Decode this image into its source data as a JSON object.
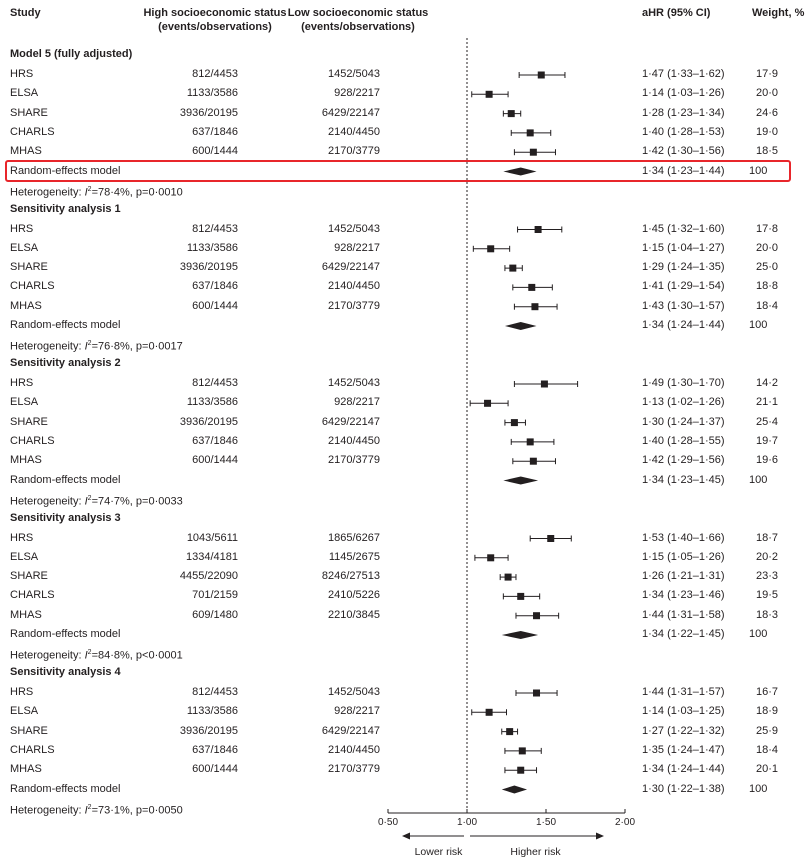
{
  "headers": {
    "study": "Study",
    "high": "High socioeconomic status\n(events/observations)",
    "low": "Low socioeconomic status\n(events/observations)",
    "ahr": "aHR (95% CI)",
    "weight": "Weight, %"
  },
  "chart_data": {
    "type": "forest",
    "x_axis": {
      "min": 0.5,
      "max": 2.0,
      "reference": 1.0,
      "ticks": [
        0.5,
        1.0,
        1.5,
        2.0
      ],
      "tick_labels": [
        "0·50",
        "1·00",
        "1·50",
        "2·00"
      ],
      "lower_label": "Lower risk",
      "higher_label": "Higher risk"
    },
    "groups": [
      {
        "title": "Model 5 (fully adjusted)",
        "studies": [
          {
            "name": "HRS",
            "high": "812/4453",
            "low": "1452/5043",
            "hr": 1.47,
            "lo": 1.33,
            "hi": 1.62,
            "ci_text": "1·47 (1·33–1·62)",
            "weight": "17·9"
          },
          {
            "name": "ELSA",
            "high": "1133/3586",
            "low": "928/2217",
            "hr": 1.14,
            "lo": 1.03,
            "hi": 1.26,
            "ci_text": "1·14 (1·03–1·26)",
            "weight": "20·0"
          },
          {
            "name": "SHARE",
            "high": "3936/20195",
            "low": "6429/22147",
            "hr": 1.28,
            "lo": 1.23,
            "hi": 1.34,
            "ci_text": "1·28 (1·23–1·34)",
            "weight": "24·6"
          },
          {
            "name": "CHARLS",
            "high": "637/1846",
            "low": "2140/4450",
            "hr": 1.4,
            "lo": 1.28,
            "hi": 1.53,
            "ci_text": "1·40 (1·28–1·53)",
            "weight": "19·0"
          },
          {
            "name": "MHAS",
            "high": "600/1444",
            "low": "2170/3779",
            "hr": 1.42,
            "lo": 1.3,
            "hi": 1.56,
            "ci_text": "1·42 (1·30–1·56)",
            "weight": "18·5"
          }
        ],
        "pooled": {
          "label": "Random-effects model",
          "hr": 1.34,
          "lo": 1.23,
          "hi": 1.44,
          "ci_text": "1·34 (1·23–1·44)",
          "weight": "100"
        },
        "heterogeneity": {
          "prefix": "Heterogeneity: ",
          "i2_label": "I",
          "i2_exp": "2",
          "value": "=78·4%, p=0·0010"
        }
      },
      {
        "title": "Sensitivity analysis 1",
        "studies": [
          {
            "name": "HRS",
            "high": "812/4453",
            "low": "1452/5043",
            "hr": 1.45,
            "lo": 1.32,
            "hi": 1.6,
            "ci_text": "1·45 (1·32–1·60)",
            "weight": "17·8"
          },
          {
            "name": "ELSA",
            "high": "1133/3586",
            "low": "928/2217",
            "hr": 1.15,
            "lo": 1.04,
            "hi": 1.27,
            "ci_text": "1·15 (1·04–1·27)",
            "weight": "20·0"
          },
          {
            "name": "SHARE",
            "high": "3936/20195",
            "low": "6429/22147",
            "hr": 1.29,
            "lo": 1.24,
            "hi": 1.35,
            "ci_text": "1·29 (1·24–1·35)",
            "weight": "25·0"
          },
          {
            "name": "CHARLS",
            "high": "637/1846",
            "low": "2140/4450",
            "hr": 1.41,
            "lo": 1.29,
            "hi": 1.54,
            "ci_text": "1·41 (1·29–1·54)",
            "weight": "18·8"
          },
          {
            "name": "MHAS",
            "high": "600/1444",
            "low": "2170/3779",
            "hr": 1.43,
            "lo": 1.3,
            "hi": 1.57,
            "ci_text": "1·43 (1·30–1·57)",
            "weight": "18·4"
          }
        ],
        "pooled": {
          "label": "Random-effects model",
          "hr": 1.34,
          "lo": 1.24,
          "hi": 1.44,
          "ci_text": "1·34 (1·24–1·44)",
          "weight": "100"
        },
        "heterogeneity": {
          "prefix": "Heterogeneity: ",
          "i2_label": "I",
          "i2_exp": "2",
          "value": "=76·8%, p=0·0017"
        }
      },
      {
        "title": "Sensitivity analysis 2",
        "studies": [
          {
            "name": "HRS",
            "high": "812/4453",
            "low": "1452/5043",
            "hr": 1.49,
            "lo": 1.3,
            "hi": 1.7,
            "ci_text": "1·49 (1·30–1·70)",
            "weight": "14·2"
          },
          {
            "name": "ELSA",
            "high": "1133/3586",
            "low": "928/2217",
            "hr": 1.13,
            "lo": 1.02,
            "hi": 1.26,
            "ci_text": "1·13 (1·02–1·26)",
            "weight": "21·1"
          },
          {
            "name": "SHARE",
            "high": "3936/20195",
            "low": "6429/22147",
            "hr": 1.3,
            "lo": 1.24,
            "hi": 1.37,
            "ci_text": "1·30 (1·24–1·37)",
            "weight": "25·4"
          },
          {
            "name": "CHARLS",
            "high": "637/1846",
            "low": "2140/4450",
            "hr": 1.4,
            "lo": 1.28,
            "hi": 1.55,
            "ci_text": "1·40 (1·28–1·55)",
            "weight": "19·7"
          },
          {
            "name": "MHAS",
            "high": "600/1444",
            "low": "2170/3779",
            "hr": 1.42,
            "lo": 1.29,
            "hi": 1.56,
            "ci_text": "1·42 (1·29–1·56)",
            "weight": "19·6"
          }
        ],
        "pooled": {
          "label": "Random-effects model",
          "hr": 1.34,
          "lo": 1.23,
          "hi": 1.45,
          "ci_text": "1·34 (1·23–1·45)",
          "weight": "100"
        },
        "heterogeneity": {
          "prefix": "Heterogeneity: ",
          "i2_label": "I",
          "i2_exp": "2",
          "value": "=74·7%, p=0·0033"
        }
      },
      {
        "title": "Sensitivity analysis 3",
        "studies": [
          {
            "name": "HRS",
            "high": "1043/5611",
            "low": "1865/6267",
            "hr": 1.53,
            "lo": 1.4,
            "hi": 1.66,
            "ci_text": "1·53 (1·40–1·66)",
            "weight": "18·7"
          },
          {
            "name": "ELSA",
            "high": "1334/4181",
            "low": "1145/2675",
            "hr": 1.15,
            "lo": 1.05,
            "hi": 1.26,
            "ci_text": "1·15 (1·05–1·26)",
            "weight": "20·2"
          },
          {
            "name": "SHARE",
            "high": "4455/22090",
            "low": "8246/27513",
            "hr": 1.26,
            "lo": 1.21,
            "hi": 1.31,
            "ci_text": "1·26 (1·21–1·31)",
            "weight": "23·3"
          },
          {
            "name": "CHARLS",
            "high": "701/2159",
            "low": "2410/5226",
            "hr": 1.34,
            "lo": 1.23,
            "hi": 1.46,
            "ci_text": "1·34 (1·23–1·46)",
            "weight": "19·5"
          },
          {
            "name": "MHAS",
            "high": "609/1480",
            "low": "2210/3845",
            "hr": 1.44,
            "lo": 1.31,
            "hi": 1.58,
            "ci_text": "1·44 (1·31–1·58)",
            "weight": "18·3"
          }
        ],
        "pooled": {
          "label": "Random-effects model",
          "hr": 1.34,
          "lo": 1.22,
          "hi": 1.45,
          "ci_text": "1·34 (1·22–1·45)",
          "weight": "100"
        },
        "heterogeneity": {
          "prefix": "Heterogeneity: ",
          "i2_label": "I",
          "i2_exp": "2",
          "value": "=84·8%, p<0·0001"
        }
      },
      {
        "title": "Sensitivity analysis 4",
        "studies": [
          {
            "name": "HRS",
            "high": "812/4453",
            "low": "1452/5043",
            "hr": 1.44,
            "lo": 1.31,
            "hi": 1.57,
            "ci_text": "1·44 (1·31–1·57)",
            "weight": "16·7"
          },
          {
            "name": "ELSA",
            "high": "1133/3586",
            "low": "928/2217",
            "hr": 1.14,
            "lo": 1.03,
            "hi": 1.25,
            "ci_text": "1·14 (1·03–1·25)",
            "weight": "18·9"
          },
          {
            "name": "SHARE",
            "high": "3936/20195",
            "low": "6429/22147",
            "hr": 1.27,
            "lo": 1.22,
            "hi": 1.32,
            "ci_text": "1·27 (1·22–1·32)",
            "weight": "25·9"
          },
          {
            "name": "CHARLS",
            "high": "637/1846",
            "low": "2140/4450",
            "hr": 1.35,
            "lo": 1.24,
            "hi": 1.47,
            "ci_text": "1·35 (1·24–1·47)",
            "weight": "18·4"
          },
          {
            "name": "MHAS",
            "high": "600/1444",
            "low": "2170/3779",
            "hr": 1.34,
            "lo": 1.24,
            "hi": 1.44,
            "ci_text": "1·34 (1·24–1·44)",
            "weight": "20·1"
          }
        ],
        "pooled": {
          "label": "Random-effects model",
          "hr": 1.3,
          "lo": 1.22,
          "hi": 1.38,
          "ci_text": "1·30 (1·22–1·38)",
          "weight": "100"
        },
        "heterogeneity": {
          "prefix": "Heterogeneity: ",
          "i2_label": "I",
          "i2_exp": "2",
          "value": "=73·1%, p=0·0050"
        }
      }
    ],
    "highlight": {
      "group_index": 0,
      "row": "pooled",
      "color": "#e8262b"
    },
    "colors": {
      "ink": "#231f20",
      "highlight": "#e8262b"
    }
  }
}
